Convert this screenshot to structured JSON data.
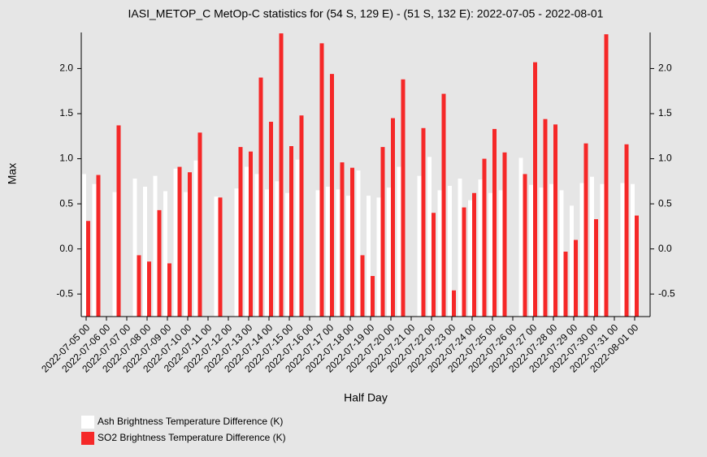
{
  "chart_data": {
    "type": "bar",
    "title": "IASI_METOP_C MetOp-C statistics for (54 S, 129 E) - (51 S, 132 E): 2022-07-05 - 2022-08-01",
    "xlabel": "Half Day",
    "ylabel": "Max",
    "categories": [
      "2022-07-05 00",
      null,
      "2022-07-06 00",
      null,
      "2022-07-07 00",
      null,
      "2022-07-08 00",
      null,
      "2022-07-09 00",
      null,
      "2022-07-10 00",
      null,
      "2022-07-11 00",
      null,
      "2022-07-12 00",
      null,
      "2022-07-13 00",
      null,
      "2022-07-14 00",
      null,
      "2022-07-15 00",
      null,
      "2022-07-16 00",
      null,
      "2022-07-17 00",
      null,
      "2022-07-18 00",
      null,
      "2022-07-19 00",
      null,
      "2022-07-20 00",
      null,
      "2022-07-21 00",
      null,
      "2022-07-22 00",
      null,
      "2022-07-23 00",
      null,
      "2022-07-24 00",
      null,
      "2022-07-25 00",
      null,
      "2022-07-26 00",
      null,
      "2022-07-27 00",
      null,
      "2022-07-28 00",
      null,
      "2022-07-29 00",
      null,
      "2022-07-30 00",
      null,
      "2022-07-31 00",
      null,
      "2022-08-01 00"
    ],
    "series": [
      {
        "name": "Ash Brightness Temperature Difference (K)",
        "color": "#ffffff",
        "values": [
          0.83,
          0.72,
          null,
          0.63,
          null,
          0.78,
          0.69,
          0.81,
          0.64,
          0.89,
          0.63,
          0.98,
          null,
          0.58,
          null,
          0.67,
          0.91,
          0.83,
          0.66,
          0.75,
          0.62,
          0.99,
          null,
          0.65,
          0.69,
          0.66,
          0.59,
          0.87,
          0.59,
          0.57,
          0.68,
          0.91,
          null,
          0.81,
          1.02,
          0.65,
          0.7,
          0.78,
          0.54,
          0.77,
          0.62,
          0.65,
          null,
          1.01,
          0.71,
          0.68,
          0.72,
          0.65,
          0.48,
          0.73,
          0.8,
          0.72,
          null,
          0.73,
          0.72
        ]
      },
      {
        "name": "SO2 Brightness Temperature Difference (K)",
        "color": "#f52828",
        "values": [
          0.31,
          0.82,
          null,
          1.37,
          null,
          -0.07,
          -0.14,
          0.43,
          -0.16,
          0.91,
          0.85,
          1.29,
          null,
          0.57,
          null,
          1.13,
          1.08,
          1.9,
          1.41,
          2.39,
          1.14,
          1.48,
          null,
          2.28,
          1.94,
          0.96,
          0.9,
          -0.07,
          -0.3,
          1.13,
          1.45,
          1.88,
          null,
          1.34,
          0.4,
          1.72,
          -0.46,
          0.46,
          0.62,
          1.0,
          1.33,
          1.07,
          null,
          0.83,
          2.07,
          1.44,
          1.38,
          -0.03,
          0.1,
          1.17,
          0.33,
          2.38,
          null,
          1.16,
          0.37
        ]
      }
    ],
    "ylim": [
      -0.75,
      2.4
    ],
    "yticks": [
      -0.5,
      {
        "value": 0,
        "label": "0.0"
      },
      0.5,
      {
        "value": 1,
        "label": "1.0"
      },
      1.5,
      {
        "value": 2,
        "label": "2.0"
      }
    ]
  }
}
